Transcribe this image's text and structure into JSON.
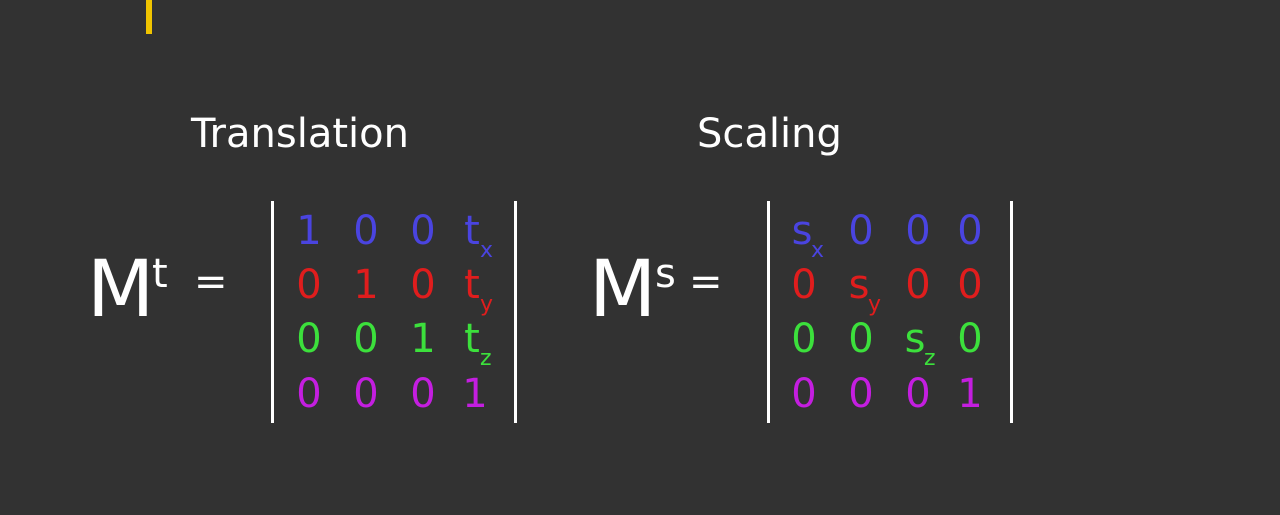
{
  "translation": {
    "title": "Translation",
    "matrix_letter": "M",
    "superscript": "t",
    "equals": "=",
    "rows": [
      [
        "1",
        "0",
        "0",
        "t"
      ],
      [
        "0",
        "1",
        "0",
        "t"
      ],
      [
        "0",
        "0",
        "1",
        "t"
      ],
      [
        "0",
        "0",
        "0",
        "1"
      ]
    ],
    "subscripts": [
      "x",
      "y",
      "z"
    ]
  },
  "scaling": {
    "title": "Scaling",
    "matrix_letter": "M",
    "superscript": "s",
    "equals": "=",
    "rows": [
      [
        "s",
        "0",
        "0",
        "0"
      ],
      [
        "0",
        "s",
        "0",
        "0"
      ],
      [
        "0",
        "0",
        "s",
        "0"
      ],
      [
        "0",
        "0",
        "0",
        "1"
      ]
    ],
    "subscripts": [
      "x",
      "y",
      "z"
    ]
  },
  "colors": {
    "background": "#323232",
    "accent": "#f0c400",
    "row1": "#4a44e0",
    "row2": "#e01d1d",
    "row3": "#3ce03c",
    "row4": "#c41ee0"
  }
}
